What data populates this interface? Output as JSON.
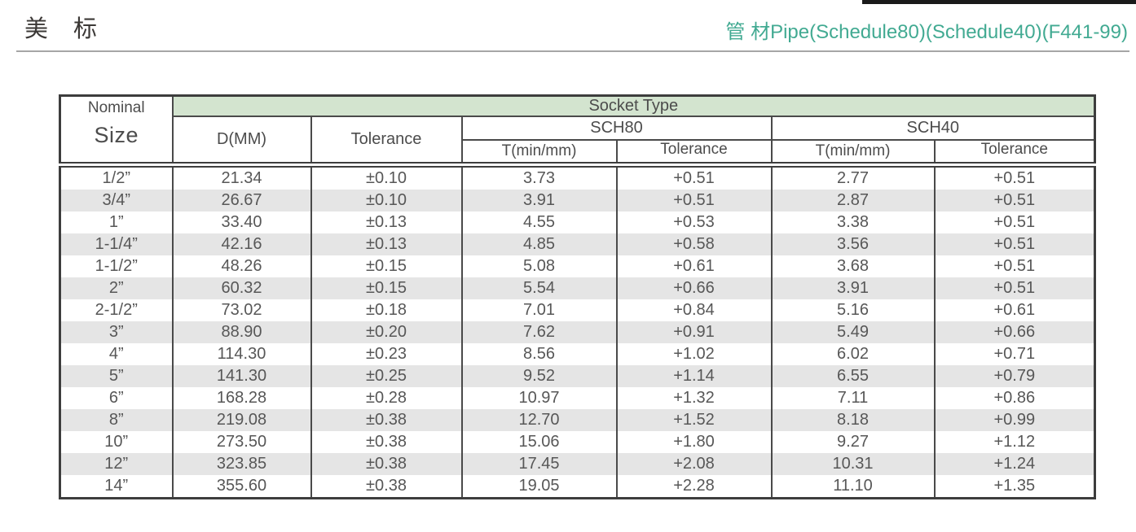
{
  "header": {
    "title_left": "美　标",
    "title_right": "管 材Pipe(Schedule80)(Schedule40)(F441-99)"
  },
  "colors": {
    "accent_teal": "#42aa92",
    "header_band_green": "#d3e4cf",
    "row_stripe_gray": "#e5e5e5",
    "border_dark": "#3d3d3d"
  },
  "table": {
    "header": {
      "nominal_line1": "Nominal",
      "nominal_line2": "Size",
      "socket_type": "Socket Type",
      "d_mm": "D(MM)",
      "tolerance": "Tolerance",
      "sch80": "SCH80",
      "sch40": "SCH40",
      "t_min_mm": "T(min/mm)",
      "sub_tolerance": "Tolerance"
    },
    "columns": [
      "size",
      "d_mm",
      "d_tolerance",
      "sch80_t_min",
      "sch80_tolerance",
      "sch40_t_min",
      "sch40_tolerance"
    ],
    "rows": [
      [
        "1/2”",
        "21.34",
        "±0.10",
        "3.73",
        "+0.51",
        "2.77",
        "+0.51"
      ],
      [
        "3/4”",
        "26.67",
        "±0.10",
        "3.91",
        "+0.51",
        "2.87",
        "+0.51"
      ],
      [
        "1”",
        "33.40",
        "±0.13",
        "4.55",
        "+0.53",
        "3.38",
        "+0.51"
      ],
      [
        "1-1/4”",
        "42.16",
        "±0.13",
        "4.85",
        "+0.58",
        "3.56",
        "+0.51"
      ],
      [
        "1-1/2”",
        "48.26",
        "±0.15",
        "5.08",
        "+0.61",
        "3.68",
        "+0.51"
      ],
      [
        "2”",
        "60.32",
        "±0.15",
        "5.54",
        "+0.66",
        "3.91",
        "+0.51"
      ],
      [
        "2-1/2”",
        "73.02",
        "±0.18",
        "7.01",
        "+0.84",
        "5.16",
        "+0.61"
      ],
      [
        "3”",
        "88.90",
        "±0.20",
        "7.62",
        "+0.91",
        "5.49",
        "+0.66"
      ],
      [
        "4”",
        "114.30",
        "±0.23",
        "8.56",
        "+1.02",
        "6.02",
        "+0.71"
      ],
      [
        "5”",
        "141.30",
        "±0.25",
        "9.52",
        "+1.14",
        "6.55",
        "+0.79"
      ],
      [
        "6”",
        "168.28",
        "±0.28",
        "10.97",
        "+1.32",
        "7.11",
        "+0.86"
      ],
      [
        "8”",
        "219.08",
        "±0.38",
        "12.70",
        "+1.52",
        "8.18",
        "+0.99"
      ],
      [
        "10”",
        "273.50",
        "±0.38",
        "15.06",
        "+1.80",
        "9.27",
        "+1.12"
      ],
      [
        "12”",
        "323.85",
        "±0.38",
        "17.45",
        "+2.08",
        "10.31",
        "+1.24"
      ],
      [
        "14”",
        "355.60",
        "±0.38",
        "19.05",
        "+2.28",
        "11.10",
        "+1.35"
      ]
    ]
  }
}
